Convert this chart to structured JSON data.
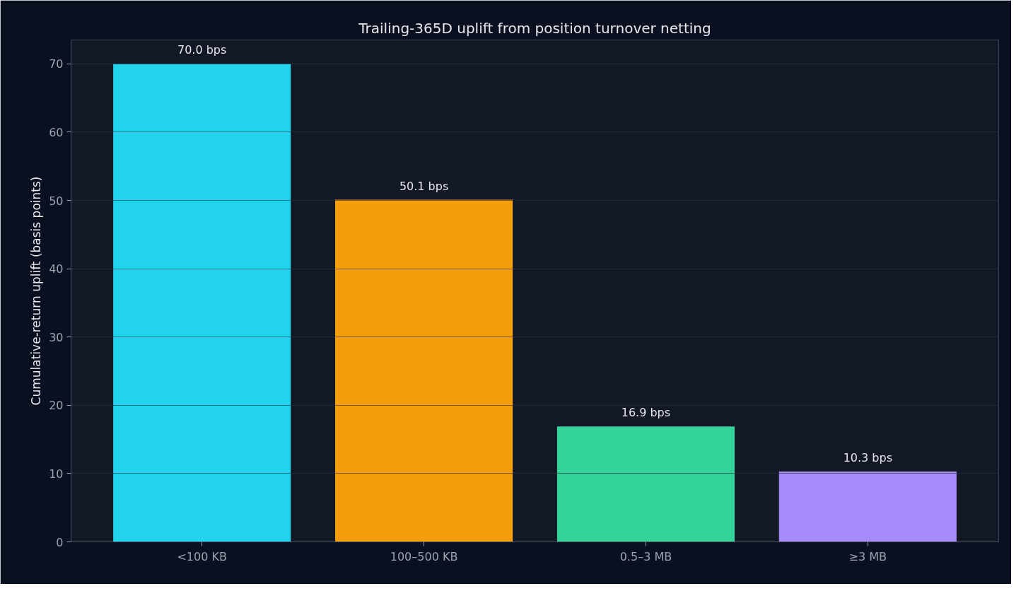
{
  "chart_data": {
    "type": "bar",
    "title": "Trailing-365D uplift from position turnover netting",
    "ylabel": "Cumulative-return uplift (basis points)",
    "categories": [
      "<100 KB",
      "100–500 KB",
      "0.5–3 MB",
      "≥3 MB"
    ],
    "values": [
      70.0,
      50.1,
      16.9,
      10.3
    ],
    "colors": [
      "#22d3ee",
      "#f59e0b",
      "#34d399",
      "#a78bfa"
    ],
    "value_labels": [
      "70.0 bps",
      "50.1 bps",
      "16.9 bps",
      "10.3 bps"
    ],
    "ylim": [
      0,
      73.5
    ],
    "yticks": [
      0,
      10,
      20,
      30,
      40,
      50,
      60,
      70
    ],
    "grid": "y"
  }
}
